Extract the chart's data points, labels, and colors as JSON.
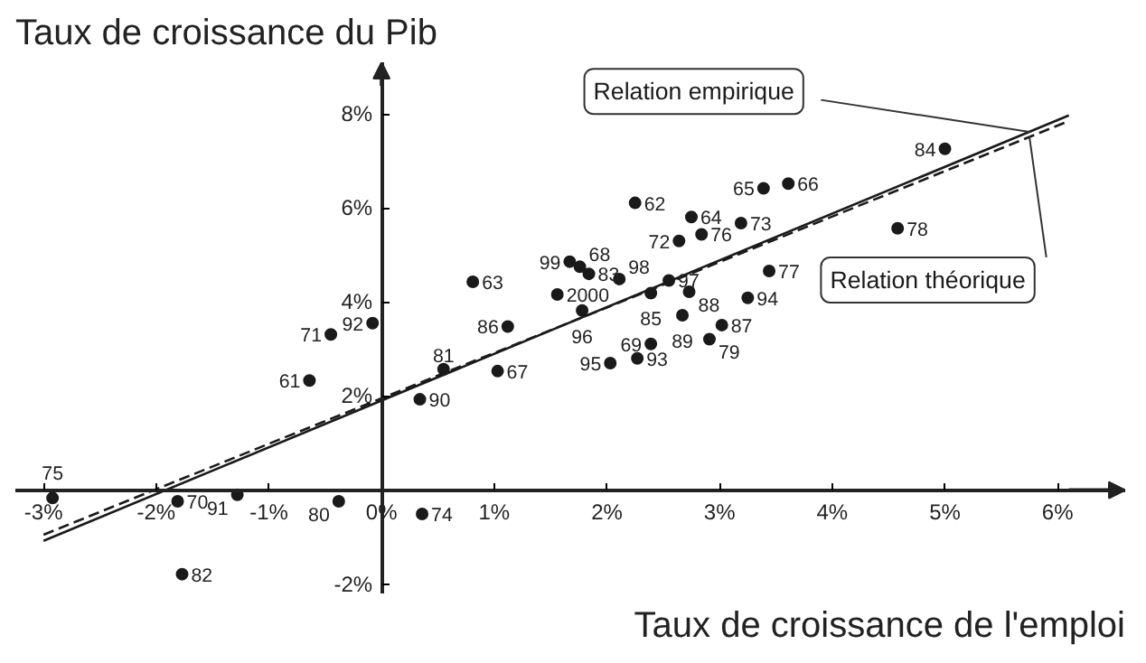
{
  "chart_data": {
    "type": "scatter",
    "xlabel": "Taux de croissance de l'emploi",
    "ylabel": "Taux de croissance du Pib",
    "xlim": [
      -3.25,
      6.6
    ],
    "ylim": [
      -2.2,
      9.1
    ],
    "xticks": [
      {
        "value": -3,
        "label": "-3%"
      },
      {
        "value": -2,
        "label": "-2%"
      },
      {
        "value": -1,
        "label": "-1%"
      },
      {
        "value": 0,
        "label": "0%"
      },
      {
        "value": 1,
        "label": "1%"
      },
      {
        "value": 2,
        "label": "2%"
      },
      {
        "value": 3,
        "label": "3%"
      },
      {
        "value": 4,
        "label": "4%"
      },
      {
        "value": 5,
        "label": "5%"
      },
      {
        "value": 6,
        "label": "6%"
      }
    ],
    "yticks": [
      {
        "value": -2,
        "label": "-2%"
      },
      {
        "value": 2,
        "label": "2%"
      },
      {
        "value": 4,
        "label": "4%"
      },
      {
        "value": 6,
        "label": "6%"
      },
      {
        "value": 8,
        "label": "8%"
      }
    ],
    "grid": false,
    "marker": "circle",
    "series": [
      {
        "color": "#1a1a1a",
        "x": [
          5.0,
          3.39,
          3.61,
          2.25,
          2.75,
          3.19,
          2.64,
          2.84,
          4.58,
          1.67,
          1.76,
          1.84,
          2.11,
          2.55,
          2.39,
          2.73,
          3.44,
          3.25,
          2.67,
          1.56,
          1.78,
          3.02,
          2.91,
          2.39,
          2.03,
          2.27,
          0.81,
          -0.08,
          -0.45,
          1.12,
          -0.64,
          0.55,
          1.03,
          0.34,
          -1.28,
          -0.38,
          -2.92,
          -1.81,
          0.36,
          -1.77
        ],
        "values": [
          7.26,
          6.42,
          6.52,
          6.11,
          5.81,
          5.68,
          5.3,
          5.44,
          5.57,
          4.86,
          4.75,
          4.6,
          4.49,
          4.46,
          4.19,
          4.22,
          4.66,
          4.09,
          3.72,
          4.16,
          3.82,
          3.51,
          3.21,
          3.11,
          2.7,
          2.8,
          4.43,
          3.55,
          3.31,
          3.48,
          2.33,
          2.57,
          2.53,
          1.93,
          -0.1,
          -0.24,
          -0.17,
          -0.24,
          -0.51,
          -1.79
        ]
      },
      {
        "type": "line",
        "name": "Relation empirique",
        "color": "#1a1a1a",
        "marker": "none",
        "line_style": "solid",
        "x": [
          -3.0,
          6.1
        ],
        "values": [
          -1.08,
          7.97
        ]
      },
      {
        "type": "line",
        "name": "Relation théorique",
        "color": "#1a1a1a",
        "marker": "none",
        "line_style": "dashed",
        "x": [
          -3.0,
          6.1
        ],
        "values": [
          -0.95,
          7.85
        ]
      }
    ],
    "annotations": [
      {
        "text": "84",
        "x": 5.0,
        "y": 7.26
      },
      {
        "text": "65",
        "x": 3.39,
        "y": 6.42
      },
      {
        "text": "66",
        "x": 3.61,
        "y": 6.52
      },
      {
        "text": "62",
        "x": 2.25,
        "y": 6.11
      },
      {
        "text": "64",
        "x": 2.75,
        "y": 5.81
      },
      {
        "text": "73",
        "x": 3.19,
        "y": 5.68
      },
      {
        "text": "72",
        "x": 2.64,
        "y": 5.3
      },
      {
        "text": "76",
        "x": 2.84,
        "y": 5.44
      },
      {
        "text": "78",
        "x": 4.58,
        "y": 5.57
      },
      {
        "text": "99",
        "x": 1.67,
        "y": 4.86
      },
      {
        "text": "68",
        "x": 1.76,
        "y": 4.75
      },
      {
        "text": "83",
        "x": 1.84,
        "y": 4.6
      },
      {
        "text": "98",
        "x": 2.11,
        "y": 4.49
      },
      {
        "text": "97",
        "x": 2.55,
        "y": 4.46
      },
      {
        "text": "85",
        "x": 2.39,
        "y": 4.19
      },
      {
        "text": "88",
        "x": 2.73,
        "y": 4.22
      },
      {
        "text": "77",
        "x": 3.44,
        "y": 4.66
      },
      {
        "text": "94",
        "x": 3.25,
        "y": 4.09
      },
      {
        "text": "89",
        "x": 2.67,
        "y": 3.72
      },
      {
        "text": "2000",
        "x": 1.56,
        "y": 4.16
      },
      {
        "text": "96",
        "x": 1.78,
        "y": 3.82
      },
      {
        "text": "87",
        "x": 3.02,
        "y": 3.51
      },
      {
        "text": "79",
        "x": 2.91,
        "y": 3.21
      },
      {
        "text": "69",
        "x": 2.39,
        "y": 3.11
      },
      {
        "text": "95",
        "x": 2.03,
        "y": 2.7
      },
      {
        "text": "93",
        "x": 2.27,
        "y": 2.8
      },
      {
        "text": "63",
        "x": 0.81,
        "y": 4.43
      },
      {
        "text": "92",
        "x": -0.08,
        "y": 3.55
      },
      {
        "text": "71",
        "x": -0.45,
        "y": 3.31
      },
      {
        "text": "86",
        "x": 1.12,
        "y": 3.48
      },
      {
        "text": "61",
        "x": -0.64,
        "y": 2.33
      },
      {
        "text": "81",
        "x": 0.55,
        "y": 2.57
      },
      {
        "text": "67",
        "x": 1.03,
        "y": 2.53
      },
      {
        "text": "90",
        "x": 0.34,
        "y": 1.93
      },
      {
        "text": "91",
        "x": -1.28,
        "y": -0.1
      },
      {
        "text": "80",
        "x": -0.38,
        "y": -0.24
      },
      {
        "text": "75",
        "x": -2.92,
        "y": -0.17
      },
      {
        "text": "70",
        "x": -1.81,
        "y": -0.24
      },
      {
        "text": "74",
        "x": 0.36,
        "y": -0.51
      },
      {
        "text": "82",
        "x": -1.77,
        "y": -1.79
      }
    ]
  }
}
